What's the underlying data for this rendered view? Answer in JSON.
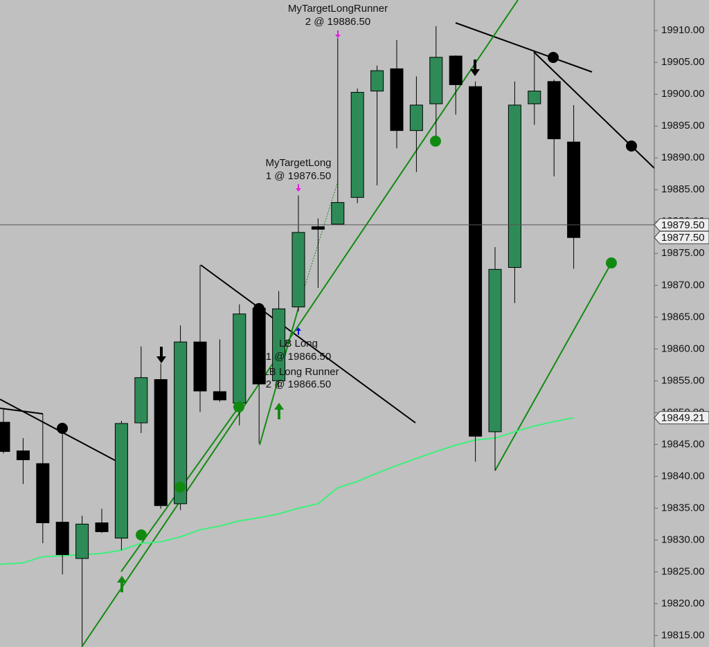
{
  "chart_data": {
    "type": "candlestick",
    "colors": {
      "up": "#2e8b57",
      "down": "#000000",
      "background": "#c0c0c0"
    },
    "open": [
      19848.5,
      19844.0,
      19842.0,
      19832.8,
      19827.1,
      19832.7,
      19830.3,
      19848.4,
      19855.2,
      19835.7,
      19861.1,
      19853.3,
      19851.5,
      19866.4,
      19855.0,
      19866.6,
      19879.2,
      19879.6,
      19883.8,
      19900.5,
      19904.0,
      19894.3,
      19898.5,
      19906.0,
      19901.2,
      19847.0,
      19872.8,
      19898.5,
      19902.0,
      19892.5
    ],
    "high": [
      19850.7,
      19846.0,
      19849.8,
      19847.4,
      19833.8,
      19834.9,
      19848.7,
      19860.4,
      19857.7,
      19863.7,
      19873.2,
      19861.5,
      19867.0,
      19867.0,
      19869.1,
      19884.1,
      19880.5,
      19908.8,
      19900.9,
      19904.5,
      19908.5,
      19902.8,
      19910.7,
      19906.1,
      19902.0,
      19876.0,
      19902.0,
      19906.6,
      19902.3,
      19898.3
    ],
    "low": [
      19843.6,
      19838.8,
      19829.5,
      19824.6,
      19813.5,
      19831.1,
      19828.4,
      19846.8,
      19834.9,
      19834.7,
      19850.1,
      19851.7,
      19848.0,
      19845.2,
      19853.9,
      19865.9,
      19869.6,
      19879.5,
      19882.9,
      19885.7,
      19891.5,
      19887.8,
      19893.0,
      19896.8,
      19842.3,
      19840.9,
      19867.2,
      19895.2,
      19887.1,
      19872.6
    ],
    "close": [
      19843.9,
      19842.6,
      19832.7,
      19827.7,
      19832.5,
      19831.3,
      19848.3,
      19855.5,
      19835.4,
      19861.1,
      19853.4,
      19852.0,
      19865.5,
      19854.5,
      19866.3,
      19878.3,
      19878.8,
      19883.0,
      19900.3,
      19903.7,
      19894.3,
      19898.3,
      19905.8,
      19901.5,
      19846.3,
      19872.5,
      19898.3,
      19900.5,
      19893.0,
      19877.5
    ],
    "overlay_line": {
      "color": "#3cf07a",
      "values": [
        19826.2,
        19826.4,
        19827.4,
        19827.5,
        19827.7,
        19827.9,
        19828.4,
        19829.5,
        19829.7,
        19830.5,
        19831.6,
        19832.2,
        19833.0,
        19833.5,
        19834.1,
        19835.0,
        19835.7,
        19838.2,
        19839.2,
        19840.5,
        19841.7,
        19842.8,
        19843.9,
        19844.9,
        19845.7,
        19846.0,
        19847.0,
        19847.9,
        19848.6,
        19849.2
      ]
    },
    "ylim": [
      19813.2,
      19914.8
    ],
    "yticks": [
      {
        "value": 19815,
        "label": "19815.00"
      },
      {
        "value": 19820,
        "label": "19820.00"
      },
      {
        "value": 19825,
        "label": "19825.00"
      },
      {
        "value": 19830,
        "label": "19830.00"
      },
      {
        "value": 19835,
        "label": "19835.00"
      },
      {
        "value": 19840,
        "label": "19840.00"
      },
      {
        "value": 19845,
        "label": "19845.00"
      },
      {
        "value": 19850,
        "label": "19850.00"
      },
      {
        "value": 19855,
        "label": "19855.00"
      },
      {
        "value": 19860,
        "label": "19860.00"
      },
      {
        "value": 19865,
        "label": "19865.00"
      },
      {
        "value": 19870,
        "label": "19870.00"
      },
      {
        "value": 19875,
        "label": "19875.00"
      },
      {
        "value": 19880,
        "label": "19880.00"
      },
      {
        "value": 19885,
        "label": "19885.00"
      },
      {
        "value": 19890,
        "label": "19890.00"
      },
      {
        "value": 19895,
        "label": "19895.00"
      },
      {
        "value": 19900,
        "label": "19900.00"
      },
      {
        "value": 19905,
        "label": "19905.00"
      },
      {
        "value": 19910,
        "label": "19910.00"
      }
    ],
    "price_markers": [
      {
        "value": 19879.5,
        "label": "19879.50",
        "line": true
      },
      {
        "value": 19877.5,
        "label": "19877.50",
        "line": false
      },
      {
        "value": 19849.21,
        "label": "19849.21",
        "line": false
      }
    ],
    "annotations": {
      "target_runner": [
        "MyTargetLongRunner",
        "2 @ 19886.50"
      ],
      "target": [
        "MyTargetLong",
        "1 @ 19876.50"
      ],
      "entry": [
        "LB Long",
        "1 @ 19866.50",
        "LB Long Runner",
        "2 @ 19866.50"
      ]
    }
  }
}
